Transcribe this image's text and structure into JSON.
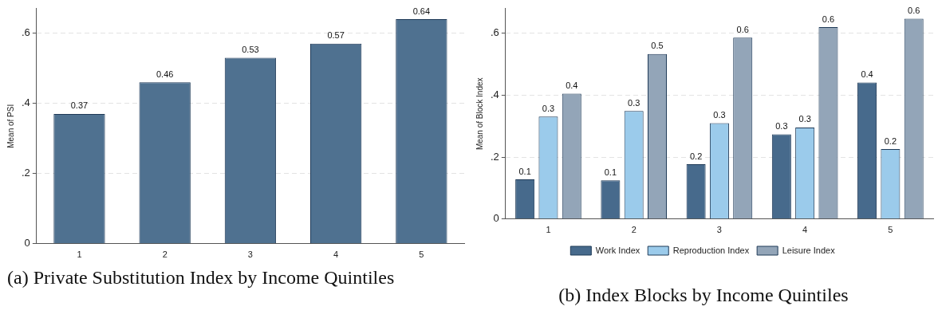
{
  "chart_data": [
    {
      "type": "bar",
      "title": "(a) Private Substitution Index by Income Quintiles",
      "ylabel": "Mean of PSI",
      "categories": [
        "1",
        "2",
        "3",
        "4",
        "5"
      ],
      "values": [
        0.37,
        0.46,
        0.53,
        0.57,
        0.64
      ],
      "color": "#4f7190",
      "data_labels": true,
      "ylim": [
        0,
        0.67
      ],
      "yticks": [
        0,
        {
          "value": 0.2,
          "label": ".2"
        },
        {
          "value": 0.4,
          "label": ".4"
        },
        {
          "value": 0.6,
          "label": ".6"
        }
      ],
      "grid": "y",
      "legend": false
    },
    {
      "type": "bar",
      "title": "(b) Index Blocks by Income Quintiles",
      "ylabel": "Mean of Block Index",
      "categories": [
        "1",
        "2",
        "3",
        "4",
        "5"
      ],
      "series": [
        {
          "name": "Work Index",
          "color": "#476a8c",
          "values": [
            0.128,
            0.125,
            0.177,
            0.274,
            0.441
          ],
          "value_labels": [
            "0.1",
            "0.1",
            "0.2",
            "0.3",
            "0.4"
          ]
        },
        {
          "name": "Reproduction Index",
          "color": "#9bcbeb",
          "values": [
            0.331,
            0.349,
            0.31,
            0.296,
            0.226
          ],
          "value_labels": [
            "0.3",
            "0.3",
            "0.3",
            "0.3",
            "0.2"
          ]
        },
        {
          "name": "Leisure Index",
          "color": "#93a5b8",
          "values": [
            0.405,
            0.533,
            0.586,
            0.62,
            0.647
          ],
          "value_labels": [
            "0.4",
            "0.5",
            "0.6",
            "0.6",
            "0.6"
          ]
        }
      ],
      "ylim": [
        0,
        0.68
      ],
      "yticks": [
        0,
        {
          "value": 0.2,
          "label": ".2"
        },
        {
          "value": 0.4,
          "label": ".4"
        },
        {
          "value": 0.6,
          "label": ".6"
        }
      ],
      "grid": "y",
      "legend": "bottom"
    }
  ]
}
